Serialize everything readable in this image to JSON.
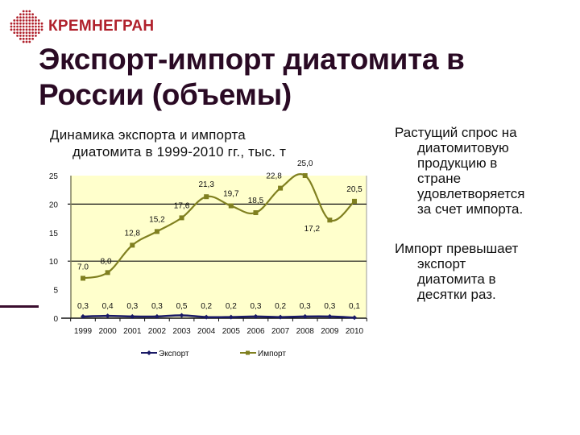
{
  "logo": {
    "text": "КРЕМНЕГРАН",
    "icon": "company-logo-icon",
    "color": "#b0212c"
  },
  "slide": {
    "title": "Экспорт-импорт диатомита в России (объемы)",
    "accent_color": "#3a0d2e"
  },
  "chart_caption": {
    "line1": "Динамика экспорта и импорта",
    "line2": "диатомита в 1999-2010 гг., тыс. т"
  },
  "bullets": [
    {
      "first": "Растущий спрос на",
      "rest": [
        "диатомитовую",
        "продукцию в",
        "стране",
        "удовлетворяется",
        "за счет импорта."
      ]
    },
    {
      "first": "Импорт превышает",
      "rest": [
        "экспорт",
        "диатомита в",
        "десятки раз."
      ]
    }
  ],
  "chart_data": {
    "type": "line",
    "title": "Динамика экспорта и импорта диатомита в 1999-2010 гг., тыс. т",
    "xlabel": "",
    "ylabel": "",
    "ylim": [
      0,
      25
    ],
    "yticks": [
      "0",
      "5",
      "10",
      "15",
      "20",
      "25"
    ],
    "grid": "horizontal at 10 and 20",
    "plot_background": "#ffffcc",
    "legend_position": "bottom",
    "categories": [
      "1999",
      "2000",
      "2001",
      "2002",
      "2003",
      "2004",
      "2005",
      "2006",
      "2007",
      "2008",
      "2009",
      "2010"
    ],
    "series": [
      {
        "name": "Экспорт",
        "color": "#1a1a66",
        "marker": "diamond",
        "values": [
          0.3,
          0.4,
          0.3,
          0.3,
          0.5,
          0.2,
          0.2,
          0.3,
          0.2,
          0.3,
          0.3,
          0.1
        ],
        "labels": [
          "0,3",
          "0,4",
          "0,3",
          "0,3",
          "0,5",
          "0,2",
          "0,2",
          "0,3",
          "0,2",
          "0,3",
          "0,3",
          "0,1"
        ]
      },
      {
        "name": "Импорт",
        "color": "#808020",
        "marker": "square",
        "values": [
          7.0,
          8.0,
          12.8,
          15.2,
          17.6,
          21.3,
          19.7,
          18.5,
          22.8,
          25.0,
          17.2,
          20.5
        ],
        "labels": [
          "7.0",
          "8,0",
          "12,8",
          "15,2",
          "17,6",
          "21,3",
          "19,7",
          "18,5",
          "22,8",
          "25,0",
          "17,2",
          "20,5"
        ]
      }
    ]
  }
}
